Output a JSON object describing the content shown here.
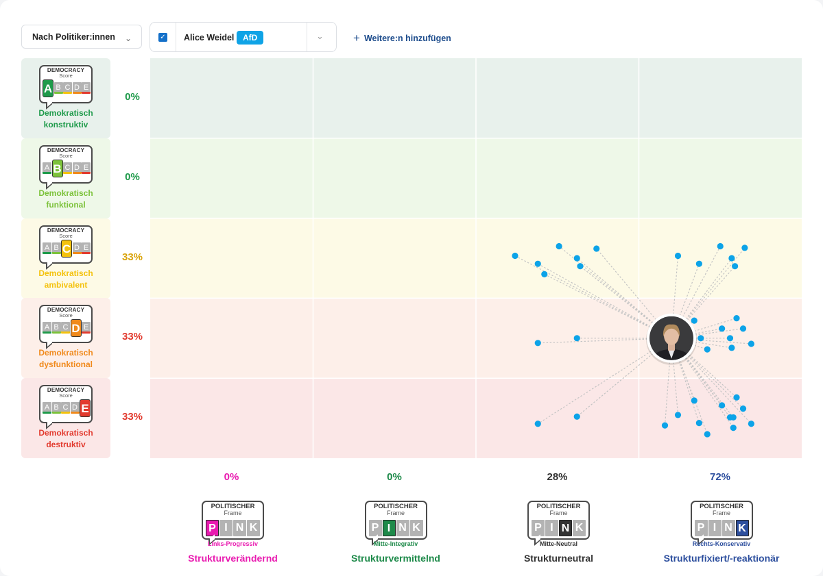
{
  "toolbar": {
    "mode_select": "Nach Politiker:innen",
    "politician_name": "Alice Weidel",
    "party_badge": "AfD",
    "add_label": "Weitere:n hinzufügen"
  },
  "colors": {
    "dot": "#0ca3e8",
    "row_backgrounds": [
      "#e8f1ec",
      "#eef8e8",
      "#fdfae6",
      "#fdefe9",
      "#fbe7e7"
    ],
    "row_accents": [
      "#1e9a4a",
      "#7cc23a",
      "#f4c20d",
      "#f08a1c",
      "#e23a2e"
    ]
  },
  "badge_text": {
    "line1": "DEMOCRACY",
    "line2": "Score"
  },
  "pink_text": {
    "line1": "POLITISCHER",
    "line2": "Frame",
    "letters": [
      "P",
      "I",
      "N",
      "K"
    ]
  },
  "chart_data": {
    "type": "scatter",
    "rows": [
      {
        "grade": "A",
        "label_line1": "Demokratisch",
        "label_line2": "konstruktiv",
        "percent": "0%",
        "color": "#1e9a4a",
        "pct_color": "#1e9a4a"
      },
      {
        "grade": "B",
        "label_line1": "Demokratisch",
        "label_line2": "funktional",
        "percent": "0%",
        "color": "#7cc23a",
        "pct_color": "#1e9a4a"
      },
      {
        "grade": "C",
        "label_line1": "Demokratisch",
        "label_line2": "ambivalent",
        "percent": "33%",
        "color": "#f4c20d",
        "pct_color": "#d9a30a"
      },
      {
        "grade": "D",
        "label_line1": "Demokratisch",
        "label_line2": "dysfunktional",
        "percent": "33%",
        "color": "#f08a1c",
        "pct_color": "#e23a2e"
      },
      {
        "grade": "E",
        "label_line1": "Demokratisch",
        "label_line2": "destruktiv",
        "percent": "33%",
        "color": "#e23a2e",
        "pct_color": "#e23a2e"
      }
    ],
    "columns": [
      {
        "letter": "P",
        "sub": "Links-Progressiv",
        "label": "Strukturverändernd",
        "percent": "0%",
        "color": "#e91bb0"
      },
      {
        "letter": "I",
        "sub": "Mitte-Integrativ",
        "label": "Strukturvermittelnd",
        "percent": "0%",
        "color": "#1e8a4a"
      },
      {
        "letter": "N",
        "sub": "Mitte-Neutral",
        "label": "Strukturneutral",
        "percent": "28%",
        "color": "#333333"
      },
      {
        "letter": "K",
        "sub": "Rechts-Konservativ",
        "label": "Strukturfixiert/-reaktionär",
        "percent": "72%",
        "color": "#2d4f9e"
      }
    ],
    "center": {
      "x": 3.2,
      "y": 3.5
    },
    "points": [
      {
        "x": 2.24,
        "y": 2.47
      },
      {
        "x": 2.38,
        "y": 2.57
      },
      {
        "x": 2.42,
        "y": 2.7
      },
      {
        "x": 2.51,
        "y": 2.35
      },
      {
        "x": 2.62,
        "y": 2.5
      },
      {
        "x": 2.64,
        "y": 2.6
      },
      {
        "x": 2.74,
        "y": 2.38
      },
      {
        "x": 3.24,
        "y": 2.47
      },
      {
        "x": 3.37,
        "y": 2.57
      },
      {
        "x": 3.5,
        "y": 2.35
      },
      {
        "x": 3.57,
        "y": 2.5
      },
      {
        "x": 3.59,
        "y": 2.6
      },
      {
        "x": 3.65,
        "y": 2.37
      },
      {
        "x": 2.38,
        "y": 3.56
      },
      {
        "x": 2.62,
        "y": 3.5
      },
      {
        "x": 3.34,
        "y": 3.28
      },
      {
        "x": 3.38,
        "y": 3.5
      },
      {
        "x": 3.42,
        "y": 3.64
      },
      {
        "x": 3.51,
        "y": 3.38
      },
      {
        "x": 3.56,
        "y": 3.5
      },
      {
        "x": 3.57,
        "y": 3.62
      },
      {
        "x": 3.6,
        "y": 3.25
      },
      {
        "x": 3.64,
        "y": 3.38
      },
      {
        "x": 3.69,
        "y": 3.57
      },
      {
        "x": 2.38,
        "y": 4.57
      },
      {
        "x": 2.62,
        "y": 4.48
      },
      {
        "x": 3.16,
        "y": 4.59
      },
      {
        "x": 3.24,
        "y": 4.46
      },
      {
        "x": 3.34,
        "y": 4.28
      },
      {
        "x": 3.37,
        "y": 4.56
      },
      {
        "x": 3.42,
        "y": 4.7
      },
      {
        "x": 3.51,
        "y": 4.34
      },
      {
        "x": 3.56,
        "y": 4.49
      },
      {
        "x": 3.58,
        "y": 4.62
      },
      {
        "x": 3.6,
        "y": 4.24
      },
      {
        "x": 3.64,
        "y": 4.38
      },
      {
        "x": 3.69,
        "y": 4.57
      },
      {
        "x": 3.58,
        "y": 4.49
      }
    ]
  }
}
